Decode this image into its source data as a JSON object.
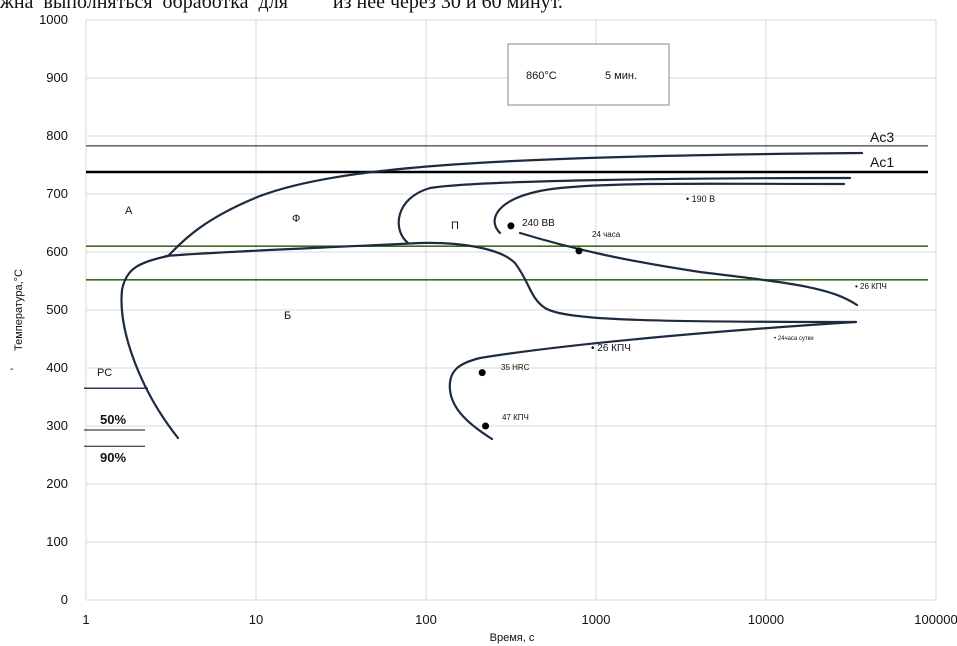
{
  "header_fragment": "жна  выполняться  обработка  для         из нее через 30 и 60 минут.",
  "chart_data": {
    "type": "line",
    "title": "",
    "xlabel": "Время, с",
    "ylabel": "Температура,°С",
    "xscale": "log",
    "xlim": [
      1,
      100000
    ],
    "ylim": [
      0,
      1000
    ],
    "xticks": [
      "1",
      "10",
      "100",
      "1000",
      "10000",
      "100000"
    ],
    "yticks": [
      "0",
      "100",
      "200",
      "300",
      "400",
      "500",
      "600",
      "700",
      "800",
      "900",
      "1000"
    ],
    "grid": true,
    "legend_box": {
      "temp": "860°С",
      "time": "5 мин."
    },
    "critical_lines": [
      {
        "label": "Ac3",
        "y": 783
      },
      {
        "label": "Ac1",
        "y": 738
      }
    ],
    "green_lines": [
      610,
      552
    ],
    "region_labels": [
      "А",
      "Ф",
      "П",
      "Б"
    ],
    "ms_label": "РС",
    "ms_levels": [
      {
        "label": "",
        "y": 365
      },
      {
        "label": "50%",
        "y": 293
      },
      {
        "label": "90%",
        "y": 265
      }
    ],
    "points": [
      {
        "x": 316,
        "y": 645,
        "label": "240 ВВ"
      },
      {
        "x": 794,
        "y": 602,
        "label": "24 часа"
      },
      {
        "x": 214,
        "y": 392,
        "label": "35 HRC"
      },
      {
        "x": 224,
        "y": 300,
        "label": "47 КПЧ"
      }
    ],
    "annotations": [
      "• 190 В",
      "• 26 КПЧ",
      "• 26 КПЧ",
      "• 24часа сутки"
    ]
  }
}
